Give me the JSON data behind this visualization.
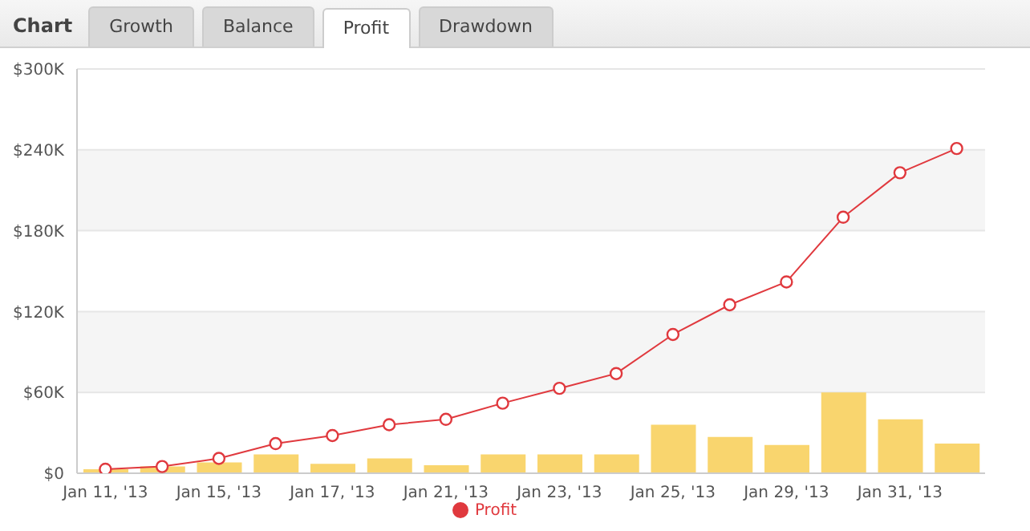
{
  "chart_data": {
    "type": "bar",
    "title": "Chart",
    "annotations": [
      "Growth",
      "Balance",
      "Profit",
      "Drawdown"
    ],
    "categories": [
      "Jan 11, '13",
      null,
      "Jan 15, '13",
      null,
      "Jan 17, '13",
      null,
      "Jan 21, '13",
      null,
      "Jan 23, '13",
      null,
      "Jan 25, '13",
      null,
      "Jan 29, '13",
      null,
      "Jan 31, '13",
      null
    ],
    "series": [
      {
        "color": "#f9d56e",
        "values": [
          3000,
          5000,
          8000,
          14000,
          7000,
          11000,
          6000,
          14000,
          14000,
          14000,
          36000,
          27000,
          21000,
          60000,
          40000,
          22000
        ]
      },
      {
        "type": "line",
        "name": "Profit",
        "color": "#e0393e",
        "values": [
          3000,
          5000,
          11000,
          22000,
          28000,
          36000,
          40000,
          52000,
          63000,
          74000,
          103000,
          125000,
          142000,
          190000,
          223000,
          241000
        ]
      }
    ],
    "ylim": [
      0,
      300000
    ],
    "yticks": [
      {
        "value": 0,
        "label": "$0"
      },
      {
        "value": 60000,
        "label": "$60K"
      },
      {
        "value": 120000,
        "label": "$120K"
      },
      {
        "value": 180000,
        "label": "$180K"
      },
      {
        "value": 240000,
        "label": "$240K"
      },
      {
        "value": 300000,
        "label": "$300K"
      }
    ],
    "grid": "y",
    "legend": "bottom",
    "marker": "circle",
    "line_style": "solid"
  }
}
